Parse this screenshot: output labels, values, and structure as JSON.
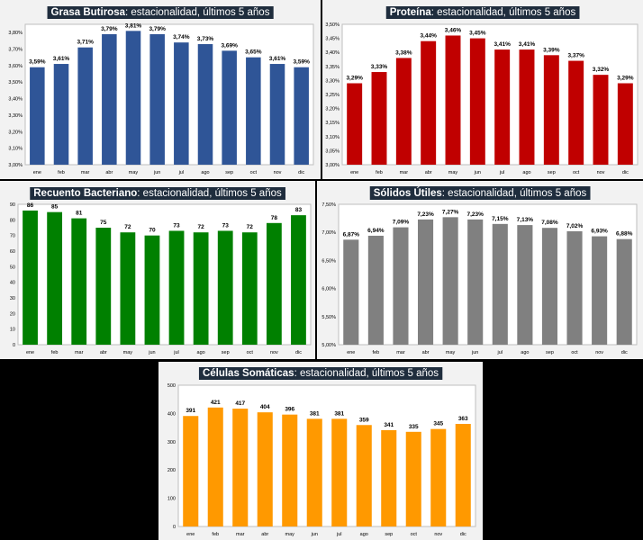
{
  "chart_data": [
    {
      "id": "grasa",
      "type": "bar",
      "title": "Grasa Butirosa",
      "subtitle": ": estacionalidad, últimos 5 años",
      "color": "#2f5597",
      "categories": [
        "ene",
        "feb",
        "mar",
        "abr",
        "may",
        "jun",
        "jul",
        "ago",
        "sep",
        "oct",
        "nov",
        "dic"
      ],
      "values": [
        3.59,
        3.61,
        3.71,
        3.79,
        3.81,
        3.79,
        3.74,
        3.73,
        3.69,
        3.65,
        3.61,
        3.59
      ],
      "labels": [
        "3,59%",
        "3,61%",
        "3,71%",
        "3,79%",
        "3,81%",
        "3,79%",
        "3,74%",
        "3,73%",
        "3,69%",
        "3,65%",
        "3,61%",
        "3,59%"
      ],
      "ylim": [
        3.0,
        3.85
      ],
      "yticks": [
        3.0,
        3.1,
        3.2,
        3.3,
        3.4,
        3.5,
        3.6,
        3.7,
        3.8
      ],
      "ytick_labels": [
        "3,00%",
        "3,10%",
        "3,20%",
        "3,30%",
        "3,40%",
        "3,50%",
        "3,60%",
        "3,70%",
        "3,80%"
      ],
      "grid": false
    },
    {
      "id": "proteina",
      "type": "bar",
      "title": "Proteína",
      "subtitle": ": estacionalidad, últimos 5 años",
      "color": "#c00000",
      "categories": [
        "ene",
        "feb",
        "mar",
        "abr",
        "may",
        "jun",
        "jul",
        "ago",
        "sep",
        "oct",
        "nov",
        "dic"
      ],
      "values": [
        3.29,
        3.33,
        3.38,
        3.44,
        3.46,
        3.45,
        3.41,
        3.41,
        3.39,
        3.37,
        3.32,
        3.29
      ],
      "labels": [
        "3,29%",
        "3,33%",
        "3,38%",
        "3,44%",
        "3,46%",
        "3,45%",
        "3,41%",
        "3,41%",
        "3,39%",
        "3,37%",
        "3,32%",
        "3,29%"
      ],
      "ylim": [
        3.0,
        3.5
      ],
      "yticks": [
        3.0,
        3.05,
        3.1,
        3.15,
        3.2,
        3.25,
        3.3,
        3.35,
        3.4,
        3.45,
        3.5
      ],
      "ytick_labels": [
        "3,00%",
        "3,05%",
        "3,10%",
        "3,15%",
        "3,20%",
        "3,25%",
        "3,30%",
        "3,35%",
        "3,40%",
        "3,45%",
        "3,50%"
      ],
      "grid": false
    },
    {
      "id": "bacterias",
      "type": "bar",
      "title": "Recuento Bacteriano",
      "subtitle": ": estacionalidad, últimos 5 años",
      "color": "#008000",
      "categories": [
        "ene",
        "feb",
        "mar",
        "abr",
        "may",
        "jun",
        "jul",
        "ago",
        "sep",
        "oct",
        "nov",
        "dic"
      ],
      "values": [
        86,
        85,
        81,
        75,
        72,
        70,
        73,
        72,
        73,
        72,
        78,
        83
      ],
      "labels": [
        "86",
        "85",
        "81",
        "75",
        "72",
        "70",
        "73",
        "72",
        "73",
        "72",
        "78",
        "83"
      ],
      "ylim": [
        0,
        90
      ],
      "yticks": [
        0,
        10,
        20,
        30,
        40,
        50,
        60,
        70,
        80,
        90
      ],
      "ytick_labels": [
        "0",
        "10",
        "20",
        "30",
        "40",
        "50",
        "60",
        "70",
        "80",
        "90"
      ],
      "grid": false
    },
    {
      "id": "solidos",
      "type": "bar",
      "title": "Sólidos Útiles",
      "subtitle": ": estacionalidad, últimos 5 años",
      "color": "#808080",
      "categories": [
        "ene",
        "feb",
        "mar",
        "abr",
        "may",
        "jun",
        "jul",
        "ago",
        "sep",
        "oct",
        "nov",
        "dic"
      ],
      "values": [
        6.87,
        6.94,
        7.09,
        7.23,
        7.27,
        7.23,
        7.15,
        7.13,
        7.08,
        7.02,
        6.93,
        6.88
      ],
      "labels": [
        "6,87%",
        "6,94%",
        "7,09%",
        "7,23%",
        "7,27%",
        "7,23%",
        "7,15%",
        "7,13%",
        "7,08%",
        "7,02%",
        "6,93%",
        "6,88%"
      ],
      "ylim": [
        5.0,
        7.5
      ],
      "yticks": [
        5.0,
        5.5,
        6.0,
        6.5,
        7.0,
        7.5
      ],
      "ytick_labels": [
        "5,00%",
        "5,50%",
        "6,00%",
        "6,50%",
        "7,00%",
        "7,50%"
      ],
      "grid": false
    },
    {
      "id": "celulas",
      "type": "bar",
      "title": "Células Somáticas",
      "subtitle": ": estacionalidad, últimos 5 años",
      "color": "#ff9900",
      "categories": [
        "ene",
        "feb",
        "mar",
        "abr",
        "may",
        "jun",
        "jul",
        "ago",
        "sep",
        "oct",
        "nov",
        "dic"
      ],
      "values": [
        391,
        421,
        417,
        404,
        396,
        381,
        381,
        359,
        341,
        335,
        345,
        363
      ],
      "labels": [
        "391",
        "421",
        "417",
        "404",
        "396",
        "381",
        "381",
        "359",
        "341",
        "335",
        "345",
        "363"
      ],
      "ylim": [
        0,
        500
      ],
      "yticks": [
        0,
        100,
        200,
        300,
        400,
        500
      ],
      "ytick_labels": [
        "0",
        "100",
        "200",
        "300",
        "400",
        "500"
      ],
      "grid": false
    }
  ]
}
